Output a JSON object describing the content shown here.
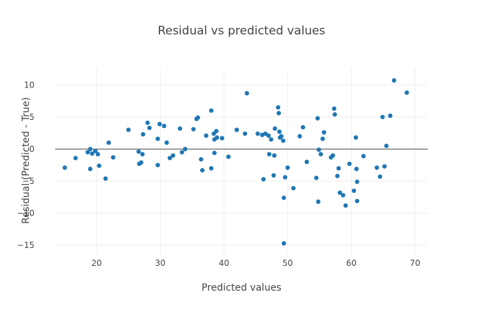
{
  "chart_data": {
    "type": "scatter",
    "title": "Residual vs predicted values",
    "xlabel": "Predicted values",
    "ylabel": "Residual (Predicted - True)",
    "xlim": [
      13.5,
      72
    ],
    "ylim": [
      -16.5,
      12.5
    ],
    "xticks": [
      20,
      30,
      40,
      50,
      60,
      70
    ],
    "yticks": [
      -15,
      -10,
      -5,
      0,
      5,
      10
    ],
    "grid": true,
    "zero_line": true,
    "marker_color": "#1f77b4",
    "points": [
      {
        "x": 15.0,
        "y": -2.9
      },
      {
        "x": 16.7,
        "y": -1.4
      },
      {
        "x": 18.6,
        "y": -0.5
      },
      {
        "x": 19.0,
        "y": -3.1
      },
      {
        "x": 19.0,
        "y": 0.0
      },
      {
        "x": 19.3,
        "y": -0.7
      },
      {
        "x": 19.8,
        "y": -0.3
      },
      {
        "x": 20.2,
        "y": -0.8
      },
      {
        "x": 20.4,
        "y": -2.6
      },
      {
        "x": 21.4,
        "y": -4.6
      },
      {
        "x": 21.9,
        "y": 1.0
      },
      {
        "x": 22.6,
        "y": -1.3
      },
      {
        "x": 25.0,
        "y": 3.0
      },
      {
        "x": 26.6,
        "y": -0.4
      },
      {
        "x": 26.7,
        "y": -2.3
      },
      {
        "x": 27.0,
        "y": -2.1
      },
      {
        "x": 27.2,
        "y": -0.8
      },
      {
        "x": 27.3,
        "y": 2.3
      },
      {
        "x": 28.0,
        "y": 4.1
      },
      {
        "x": 28.3,
        "y": 3.3
      },
      {
        "x": 29.6,
        "y": 1.6
      },
      {
        "x": 29.6,
        "y": -2.5
      },
      {
        "x": 29.9,
        "y": 3.9
      },
      {
        "x": 30.6,
        "y": 3.6
      },
      {
        "x": 31.0,
        "y": 1.0
      },
      {
        "x": 31.5,
        "y": -1.4
      },
      {
        "x": 32.0,
        "y": -1.0
      },
      {
        "x": 33.1,
        "y": 3.2
      },
      {
        "x": 33.4,
        "y": -0.5
      },
      {
        "x": 33.9,
        "y": 0.0
      },
      {
        "x": 35.2,
        "y": 3.1
      },
      {
        "x": 35.7,
        "y": 4.7
      },
      {
        "x": 35.9,
        "y": 4.9
      },
      {
        "x": 36.4,
        "y": -1.6
      },
      {
        "x": 36.6,
        "y": -3.3
      },
      {
        "x": 37.2,
        "y": 2.1
      },
      {
        "x": 38.0,
        "y": 6.0
      },
      {
        "x": 38.0,
        "y": -3.0
      },
      {
        "x": 38.4,
        "y": 2.4
      },
      {
        "x": 38.5,
        "y": -0.6
      },
      {
        "x": 38.5,
        "y": 1.5
      },
      {
        "x": 38.8,
        "y": 2.8
      },
      {
        "x": 38.9,
        "y": 1.8
      },
      {
        "x": 39.7,
        "y": 1.7
      },
      {
        "x": 40.7,
        "y": -1.2
      },
      {
        "x": 42.0,
        "y": 3.0
      },
      {
        "x": 43.3,
        "y": 2.4
      },
      {
        "x": 43.6,
        "y": 8.7
      },
      {
        "x": 45.3,
        "y": 2.4
      },
      {
        "x": 46.0,
        "y": 2.2
      },
      {
        "x": 46.2,
        "y": -4.7
      },
      {
        "x": 46.5,
        "y": 2.4
      },
      {
        "x": 47.0,
        "y": 2.1
      },
      {
        "x": 47.1,
        "y": -0.8
      },
      {
        "x": 47.4,
        "y": 1.5
      },
      {
        "x": 47.8,
        "y": -4.1
      },
      {
        "x": 47.9,
        "y": -1.0
      },
      {
        "x": 48.0,
        "y": 3.2
      },
      {
        "x": 48.5,
        "y": 6.5
      },
      {
        "x": 48.6,
        "y": 5.6
      },
      {
        "x": 48.7,
        "y": 2.7
      },
      {
        "x": 48.8,
        "y": 1.8
      },
      {
        "x": 49.0,
        "y": 2.0
      },
      {
        "x": 49.3,
        "y": 1.3
      },
      {
        "x": 49.4,
        "y": -7.6
      },
      {
        "x": 49.4,
        "y": -14.7
      },
      {
        "x": 49.6,
        "y": -4.4
      },
      {
        "x": 50.0,
        "y": -2.9
      },
      {
        "x": 50.9,
        "y": -6.1
      },
      {
        "x": 51.9,
        "y": 2.0
      },
      {
        "x": 52.4,
        "y": 3.4
      },
      {
        "x": 53.0,
        "y": -2.0
      },
      {
        "x": 54.5,
        "y": -4.5
      },
      {
        "x": 54.7,
        "y": 4.8
      },
      {
        "x": 54.8,
        "y": -8.2
      },
      {
        "x": 54.9,
        "y": -0.1
      },
      {
        "x": 55.2,
        "y": -0.8
      },
      {
        "x": 55.5,
        "y": 1.6
      },
      {
        "x": 55.7,
        "y": 2.6
      },
      {
        "x": 56.8,
        "y": -1.3
      },
      {
        "x": 57.1,
        "y": -1.0
      },
      {
        "x": 57.3,
        "y": 6.3
      },
      {
        "x": 57.4,
        "y": 5.4
      },
      {
        "x": 57.8,
        "y": -4.2
      },
      {
        "x": 58.0,
        "y": -3.0
      },
      {
        "x": 58.2,
        "y": -6.8
      },
      {
        "x": 58.7,
        "y": -7.2
      },
      {
        "x": 59.1,
        "y": -8.8
      },
      {
        "x": 59.7,
        "y": -2.3
      },
      {
        "x": 60.4,
        "y": -6.5
      },
      {
        "x": 60.7,
        "y": 1.8
      },
      {
        "x": 60.8,
        "y": -3.1
      },
      {
        "x": 60.9,
        "y": -5.1
      },
      {
        "x": 60.9,
        "y": -8.1
      },
      {
        "x": 61.9,
        "y": -1.1
      },
      {
        "x": 64.0,
        "y": -2.9
      },
      {
        "x": 64.5,
        "y": -4.3
      },
      {
        "x": 64.9,
        "y": 5.0
      },
      {
        "x": 65.2,
        "y": -2.7
      },
      {
        "x": 65.5,
        "y": 0.5
      },
      {
        "x": 66.1,
        "y": 5.2
      },
      {
        "x": 66.7,
        "y": 10.7
      },
      {
        "x": 68.7,
        "y": 8.8
      }
    ]
  }
}
